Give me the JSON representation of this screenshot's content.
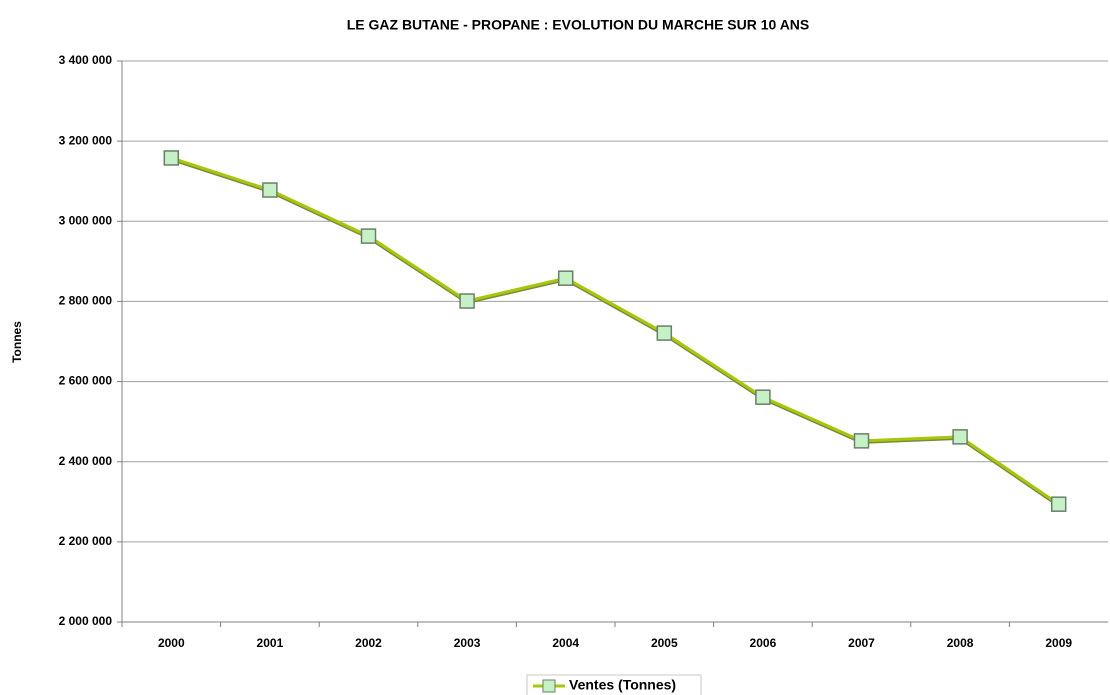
{
  "chart_data": {
    "type": "line",
    "title": "LE GAZ BUTANE - PROPANE : EVOLUTION DU MARCHE SUR 10 ANS",
    "y_label": "Tonnes",
    "categories": [
      "2000",
      "2001",
      "2002",
      "2003",
      "2004",
      "2005",
      "2006",
      "2007",
      "2008",
      "2009"
    ],
    "series": [
      {
        "name": "Ventes (Tonnes)",
        "color": "#a6c80a",
        "marker_color": "#c6f0c6",
        "values": [
          3158000,
          3078000,
          2963000,
          2801000,
          2858000,
          2721000,
          2561000,
          2452000,
          2462000,
          2294000
        ]
      }
    ],
    "ylim": [
      2000000,
      3400000
    ],
    "yticks": [
      {
        "value": 2000000,
        "label": "2 000 000"
      },
      {
        "value": 2200000,
        "label": "2 200 000"
      },
      {
        "value": 2400000,
        "label": "2 400 000"
      },
      {
        "value": 2600000,
        "label": "2 600 000"
      },
      {
        "value": 2800000,
        "label": "2 800 000"
      },
      {
        "value": 3000000,
        "label": "3 000 000"
      },
      {
        "value": 3200000,
        "label": "3 200 000"
      },
      {
        "value": 3400000,
        "label": "3 400 000"
      }
    ],
    "grid": true,
    "legend": "bottom"
  }
}
